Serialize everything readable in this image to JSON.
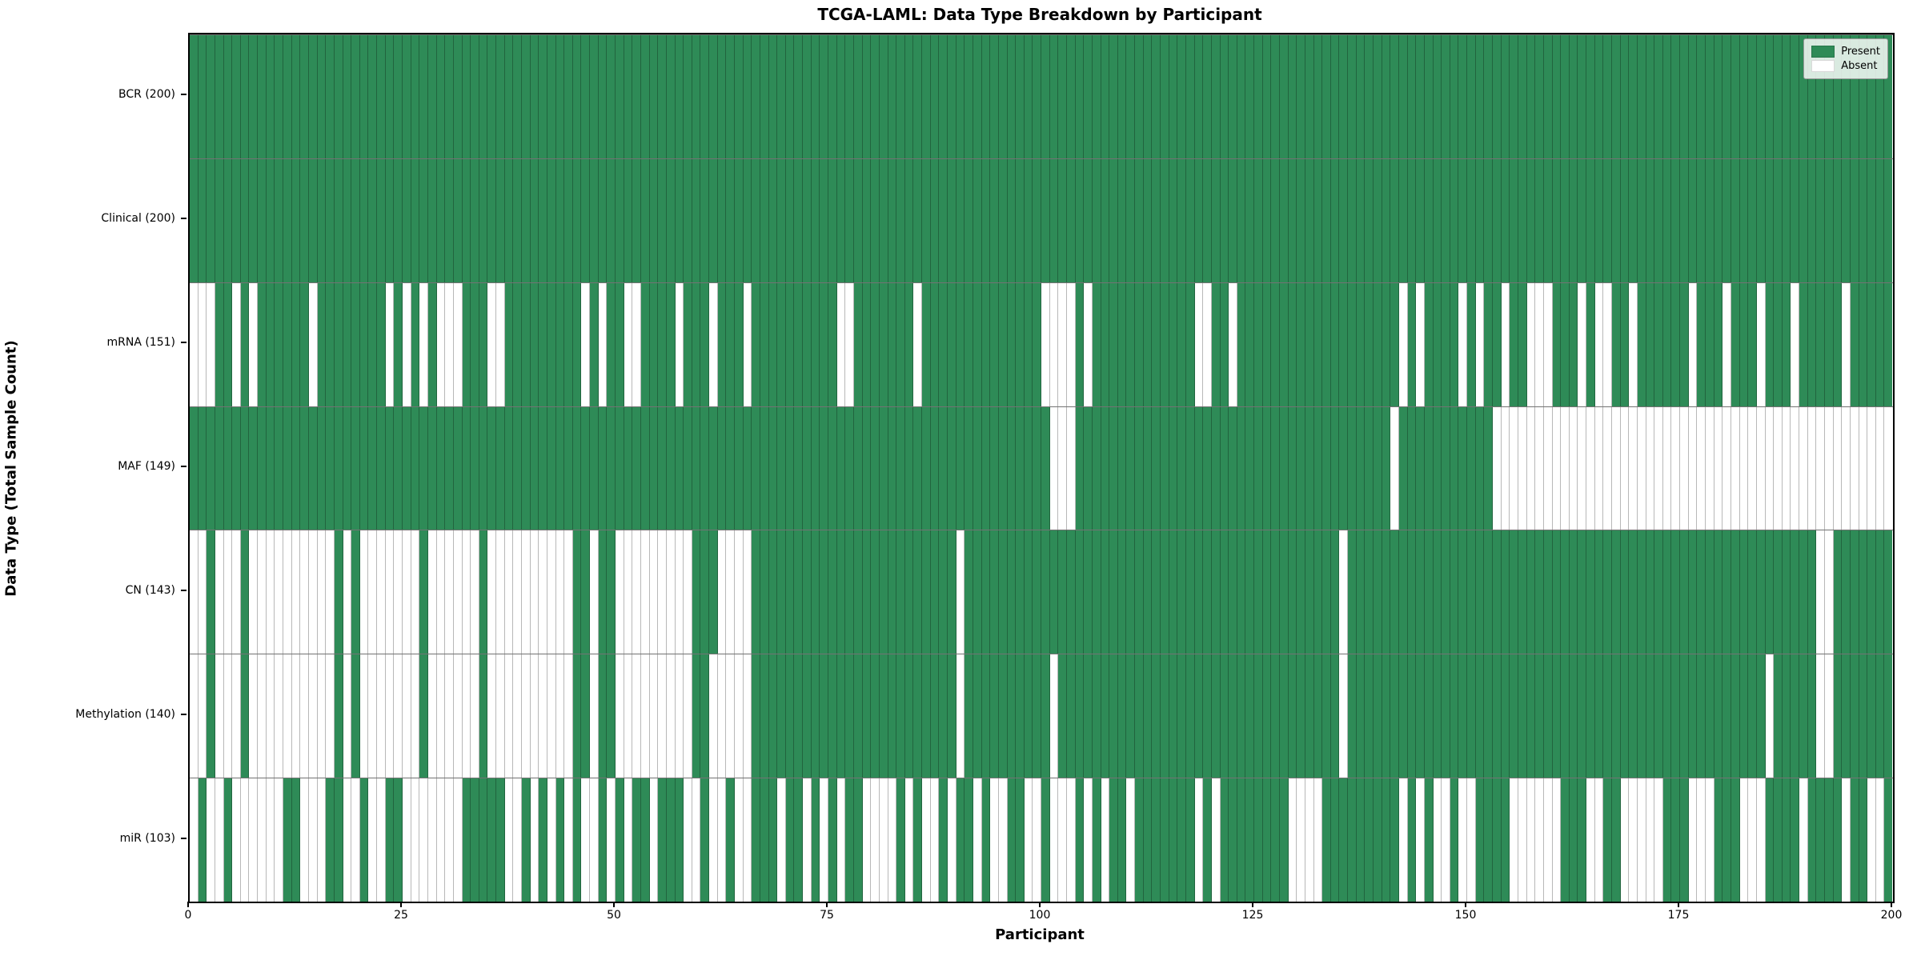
{
  "chart_data": {
    "type": "heatmap",
    "title": "TCGA-LAML: Data Type Breakdown by Participant",
    "xlabel": "Participant",
    "ylabel": "Data Type (Total Sample Count)",
    "x_max": 200,
    "n_participants": 200,
    "x_ticks": [
      0,
      25,
      50,
      75,
      100,
      125,
      150,
      175,
      200
    ],
    "grid": false,
    "legend_position": "upper right",
    "colors": {
      "present": "#2E8B57",
      "absent": "#ffffff"
    },
    "legend": [
      {
        "label": "Present",
        "color": "#2E8B57"
      },
      {
        "label": "Absent",
        "color": "#ffffff"
      }
    ],
    "rows": [
      {
        "name": "BCR",
        "label": "BCR (200)",
        "count": 200,
        "absent": []
      },
      {
        "name": "Clinical",
        "label": "Clinical (200)",
        "count": 200,
        "absent": []
      },
      {
        "name": "mRNA",
        "label": "mRNA (151)",
        "count": 151,
        "absent": [
          0,
          1,
          2,
          5,
          7,
          14,
          23,
          25,
          27,
          29,
          30,
          31,
          35,
          36,
          46,
          48,
          51,
          52,
          57,
          61,
          65,
          76,
          77,
          85,
          100,
          101,
          102,
          103,
          105,
          118,
          119,
          122,
          142,
          144,
          149,
          151,
          154,
          157,
          158,
          159,
          163,
          165,
          166,
          169,
          176,
          180,
          184,
          188,
          194
        ]
      },
      {
        "name": "MAF",
        "label": "MAF (149)",
        "count": 149,
        "absent": [
          101,
          102,
          103,
          141,
          153,
          154,
          155,
          156,
          157,
          158,
          159,
          160,
          161,
          162,
          163,
          164,
          165,
          166,
          167,
          168,
          169,
          170,
          171,
          172,
          173,
          174,
          175,
          176,
          177,
          178,
          179,
          180,
          181,
          182,
          183,
          184,
          185,
          186,
          187,
          188,
          189,
          190,
          191,
          192,
          193,
          194,
          195,
          196,
          197,
          198,
          199
        ]
      },
      {
        "name": "CN",
        "label": "CN (143)",
        "count": 143,
        "absent": [
          0,
          1,
          3,
          4,
          5,
          7,
          8,
          9,
          10,
          11,
          12,
          13,
          14,
          15,
          16,
          18,
          20,
          21,
          22,
          23,
          24,
          25,
          26,
          28,
          29,
          30,
          31,
          32,
          33,
          35,
          36,
          37,
          38,
          39,
          40,
          41,
          42,
          43,
          44,
          47,
          50,
          51,
          52,
          53,
          54,
          55,
          56,
          57,
          58,
          62,
          63,
          64,
          65,
          90,
          135,
          191,
          192
        ]
      },
      {
        "name": "Methylation",
        "label": "Methylation (140)",
        "count": 140,
        "absent": [
          0,
          1,
          3,
          4,
          5,
          7,
          8,
          9,
          10,
          11,
          12,
          13,
          14,
          15,
          16,
          18,
          20,
          21,
          22,
          23,
          24,
          25,
          26,
          28,
          29,
          30,
          31,
          32,
          33,
          35,
          36,
          37,
          38,
          39,
          40,
          41,
          42,
          43,
          44,
          47,
          50,
          51,
          52,
          53,
          54,
          55,
          56,
          57,
          58,
          61,
          62,
          63,
          64,
          65,
          90,
          101,
          135,
          185,
          191,
          192
        ]
      },
      {
        "name": "miR",
        "label": "miR (103)",
        "count": 103,
        "absent": [
          0,
          2,
          3,
          5,
          6,
          7,
          8,
          9,
          10,
          13,
          14,
          15,
          18,
          19,
          21,
          22,
          25,
          26,
          27,
          28,
          29,
          30,
          31,
          37,
          38,
          40,
          42,
          44,
          46,
          47,
          49,
          51,
          54,
          58,
          59,
          61,
          62,
          64,
          65,
          69,
          72,
          74,
          76,
          79,
          80,
          81,
          82,
          84,
          86,
          87,
          89,
          92,
          94,
          95,
          98,
          99,
          101,
          102,
          103,
          105,
          107,
          110,
          118,
          120,
          129,
          130,
          131,
          132,
          142,
          144,
          146,
          147,
          149,
          150,
          155,
          156,
          157,
          158,
          159,
          160,
          164,
          165,
          168,
          169,
          170,
          171,
          172,
          176,
          177,
          178,
          182,
          183,
          184,
          189,
          194,
          197,
          198
        ]
      }
    ]
  }
}
